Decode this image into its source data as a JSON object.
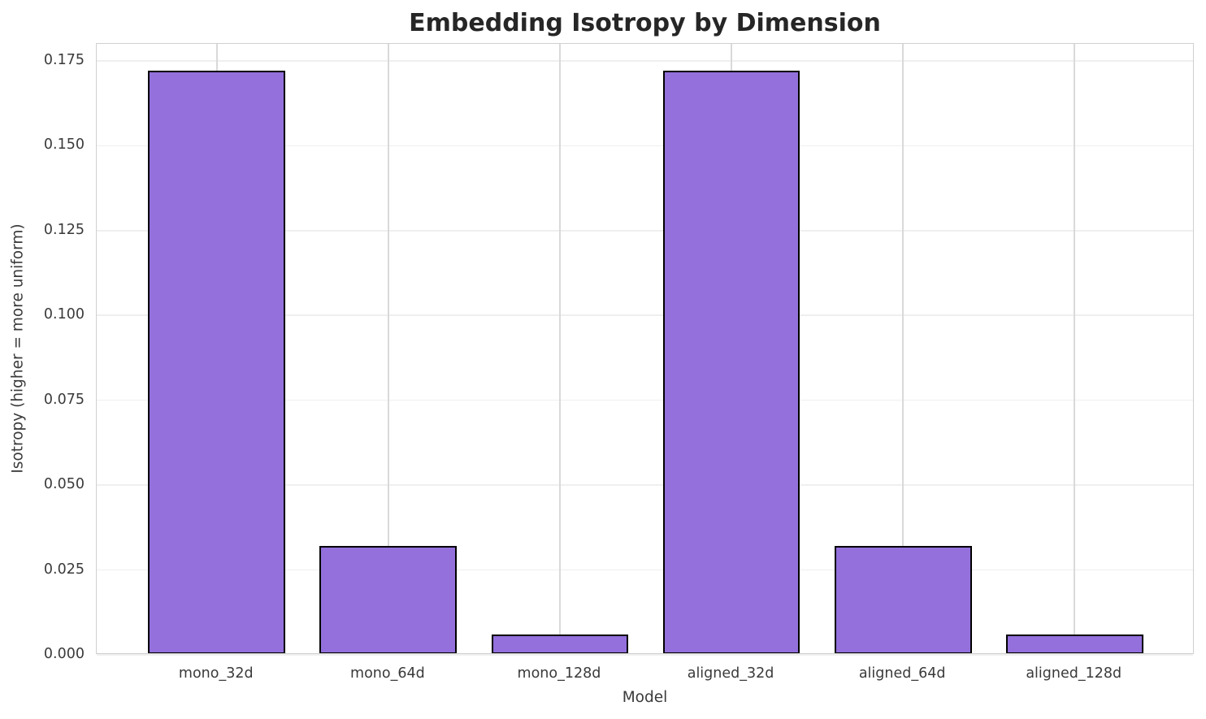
{
  "chart_data": {
    "type": "bar",
    "title": "Embedding Isotropy by Dimension",
    "xlabel": "Model",
    "ylabel": "Isotropy (higher = more uniform)",
    "categories": [
      "mono_32d",
      "mono_64d",
      "mono_128d",
      "aligned_32d",
      "aligned_64d",
      "aligned_128d"
    ],
    "values": [
      0.1716,
      0.0316,
      0.0055,
      0.1716,
      0.0316,
      0.0055
    ],
    "yticks": [
      0.0,
      0.025,
      0.05,
      0.075,
      0.1,
      0.125,
      0.15,
      0.175
    ],
    "ytick_labels": [
      "0.000",
      "0.025",
      "0.050",
      "0.075",
      "0.100",
      "0.125",
      "0.150",
      "0.175"
    ],
    "ylim": [
      0,
      0.18
    ],
    "xlim": [
      -0.7,
      5.7
    ],
    "bar_width": 0.8,
    "grid": true,
    "legend": "none",
    "colors": {
      "background": "#ffffff",
      "bar_fill": "#9370DB",
      "bar_edge": "#000000",
      "hgrid_color": "#efefef",
      "vgrid_color": "#d9d9d9",
      "spine_color": "#d0d0d0",
      "title_color": "#262626",
      "tick_color": "#3a3a3a",
      "label_color": "#3a3a3a"
    }
  }
}
